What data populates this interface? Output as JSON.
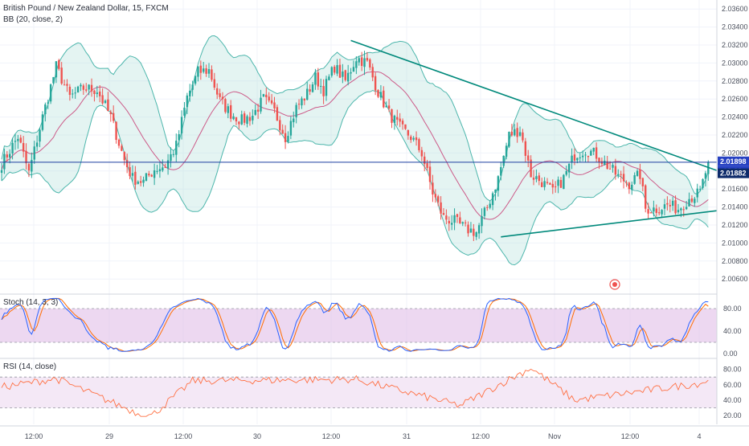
{
  "header": {
    "symbol_title": "British Pound / New Zealand Dollar, 15, FXCM",
    "bb_legend": "BB (20, close, 2)",
    "stoch_legend": "Stoch (14, 3, 3)",
    "rsi_legend": "RSI (14, close)"
  },
  "colors": {
    "up": "#26a69a",
    "down": "#ef5350",
    "bb_band": "#4db6ac",
    "bb_fill": "#b2dfdb",
    "bb_basis": "#c2185b",
    "trendline": "#00897b",
    "price_line": "#1e3fa0",
    "stoch_k": "#2962ff",
    "stoch_d": "#ff6d00",
    "stoch_bg": "#e1bee7",
    "rsi_line": "#ff7043",
    "rsi_bg": "#f3e5f5",
    "tag_blue": "#2741c2",
    "tag_dark": "#0d2a6a"
  },
  "price_axis": {
    "labels": [
      "2.03600",
      "2.03400",
      "2.03200",
      "2.03000",
      "2.02800",
      "2.02600",
      "2.02400",
      "2.02200",
      "2.02000",
      "2.01800",
      "2.01600",
      "2.01400",
      "2.01200",
      "2.01000",
      "2.00800",
      "2.00600"
    ],
    "last_price": "2.01898",
    "countdown": "08:32",
    "bb_value": "2.01882",
    "hidden_tag": "2.01600"
  },
  "stoch_axis": {
    "labels": [
      "80.00",
      "40.00",
      "0.00"
    ]
  },
  "rsi_axis": {
    "labels": [
      "80.00",
      "60.00",
      "40.00",
      "20.00"
    ]
  },
  "time_axis": {
    "labels": [
      "12:00",
      "29",
      "12:00",
      "30",
      "12:00",
      "31",
      "12:00",
      "Nov",
      "12:00",
      "4"
    ]
  },
  "chart_data": [
    {
      "type": "candlestick",
      "title": "British Pound / New Zealand Dollar, 15, FXCM",
      "indicator": "BB (20, close, 2)",
      "ylim": [
        2.0045,
        2.037
      ],
      "x_range_bars": [
        0,
        279
      ],
      "last_close": 2.01898,
      "close_path": [
        [
          0,
          2.0188
        ],
        [
          6,
          2.0218
        ],
        [
          10,
          2.0178
        ],
        [
          15,
          2.024
        ],
        [
          20,
          2.0296
        ],
        [
          25,
          2.0262
        ],
        [
          30,
          2.0272
        ],
        [
          35,
          2.027
        ],
        [
          40,
          2.024
        ],
        [
          45,
          2.0192
        ],
        [
          48,
          2.0172
        ],
        [
          52,
          2.0168
        ],
        [
          56,
          2.0182
        ],
        [
          60,
          2.0186
        ],
        [
          64,
          2.0208
        ],
        [
          68,
          2.0262
        ],
        [
          72,
          2.029
        ],
        [
          76,
          2.0292
        ],
        [
          80,
          2.0258
        ],
        [
          84,
          2.0244
        ],
        [
          88,
          2.0236
        ],
        [
          92,
          2.0242
        ],
        [
          96,
          2.026
        ],
        [
          100,
          2.0246
        ],
        [
          104,
          2.0218
        ],
        [
          108,
          2.025
        ],
        [
          112,
          2.0266
        ],
        [
          115,
          2.0284
        ],
        [
          118,
          2.027
        ],
        [
          122,
          2.0296
        ],
        [
          126,
          2.028
        ],
        [
          130,
          2.0306
        ],
        [
          134,
          2.03
        ],
        [
          138,
          2.0268
        ],
        [
          142,
          2.0244
        ],
        [
          146,
          2.0228
        ],
        [
          150,
          2.0218
        ],
        [
          154,
          2.02
        ],
        [
          158,
          2.0156
        ],
        [
          162,
          2.0128
        ],
        [
          166,
          2.0124
        ],
        [
          170,
          2.0116
        ],
        [
          174,
          2.0112
        ],
        [
          178,
          2.014
        ],
        [
          182,
          2.0172
        ],
        [
          186,
          2.022
        ],
        [
          190,
          2.0226
        ],
        [
          194,
          2.0176
        ],
        [
          198,
          2.0168
        ],
        [
          202,
          2.0156
        ],
        [
          206,
          2.0172
        ],
        [
          210,
          2.0198
        ],
        [
          214,
          2.0204
        ],
        [
          218,
          2.0198
        ],
        [
          222,
          2.0186
        ],
        [
          226,
          2.0174
        ],
        [
          230,
          2.0166
        ],
        [
          234,
          2.0176
        ],
        [
          236,
          2.0138
        ],
        [
          240,
          2.0138
        ],
        [
          244,
          2.0142
        ],
        [
          248,
          2.0138
        ],
        [
          252,
          2.015
        ],
        [
          256,
          2.0156
        ],
        [
          259,
          2.01898
        ]
      ],
      "trendlines": [
        {
          "from": [
            128,
            2.0325
          ],
          "to": [
            298,
            2.0142
          ]
        },
        {
          "from": [
            183,
            2.01068
          ],
          "to": [
            295,
            2.0148
          ]
        }
      ]
    },
    {
      "type": "line",
      "title": "Stoch (14, 3, 3)",
      "ylim": [
        0,
        100
      ],
      "bands": [
        20,
        80
      ],
      "series": [
        {
          "values_note": "oscillating between ~20 and ~90, last near 90"
        }
      ]
    },
    {
      "type": "line",
      "title": "RSI (14, close)",
      "ylim": [
        15,
        90
      ],
      "bands": [
        30,
        70
      ],
      "key_points": [
        [
          0,
          57
        ],
        [
          20,
          68
        ],
        [
          50,
          23
        ],
        [
          55,
          20
        ],
        [
          70,
          65
        ],
        [
          130,
          67
        ],
        [
          168,
          33
        ],
        [
          194,
          82
        ],
        [
          210,
          40
        ],
        [
          256,
          62
        ],
        [
          259,
          66
        ]
      ]
    }
  ]
}
